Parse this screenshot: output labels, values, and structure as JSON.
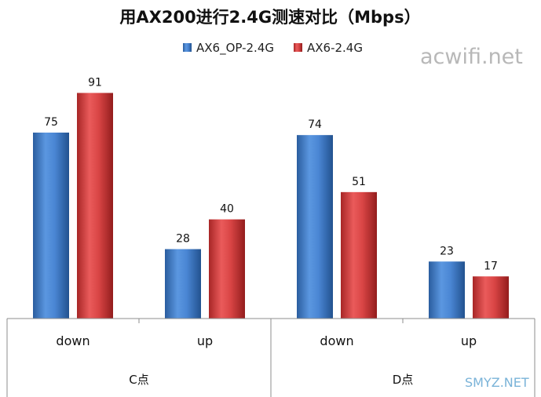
{
  "chart_data": {
    "type": "bar",
    "title": "用AX200进行2.4G测速对比（Mbps）",
    "groups": [
      "C点",
      "D点"
    ],
    "categories": [
      "down",
      "up",
      "down",
      "up"
    ],
    "series": [
      {
        "name": "AX6_OP-2.4G",
        "values": [
          75,
          28,
          74,
          23
        ],
        "color": "#3a78c9"
      },
      {
        "name": "AX6-2.4G",
        "values": [
          91,
          40,
          51,
          17
        ],
        "color": "#d23b3b"
      }
    ],
    "ylim": [
      0,
      100
    ],
    "grid": false,
    "legend": "top"
  },
  "watermarks": {
    "site": "acwifi.net",
    "corner": "SMYZ.NET"
  }
}
